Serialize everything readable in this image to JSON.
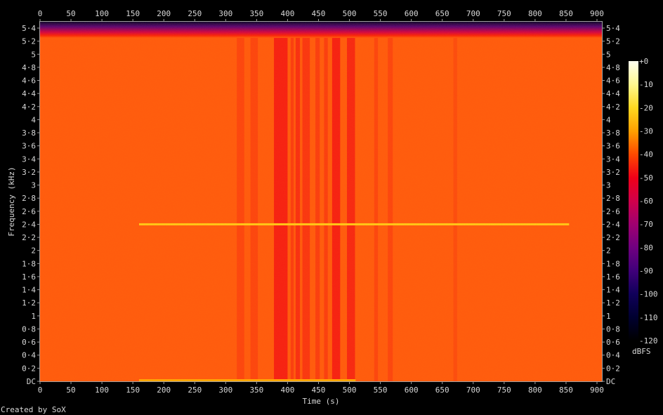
{
  "chart_data": {
    "type": "heatmap",
    "title": "",
    "xlabel": "Time (s)",
    "ylabel": "Frequency (kHz)",
    "xlim": [
      0,
      909
    ],
    "ylim": [
      0,
      5.5125
    ],
    "x_ticks": [
      "0",
      "50",
      "100",
      "150",
      "200",
      "250",
      "300",
      "350",
      "400",
      "450",
      "500",
      "550",
      "600",
      "650",
      "700",
      "750",
      "800",
      "850",
      "900"
    ],
    "x_tick_values": [
      0,
      50,
      100,
      150,
      200,
      250,
      300,
      350,
      400,
      450,
      500,
      550,
      600,
      650,
      700,
      750,
      800,
      850,
      900
    ],
    "y_ticks": [
      "DC",
      "0·2",
      "0·4",
      "0·6",
      "0·8",
      "1",
      "1·2",
      "1·4",
      "1·6",
      "1·8",
      "2",
      "2·2",
      "2·4",
      "2·6",
      "2·8",
      "3",
      "3·2",
      "3·4",
      "3·6",
      "3·8",
      "4",
      "4·2",
      "4·4",
      "4·6",
      "4·8",
      "5",
      "5·2",
      "5·4"
    ],
    "y_tick_values": [
      0,
      0.2,
      0.4,
      0.6,
      0.8,
      1,
      1.2,
      1.4,
      1.6,
      1.8,
      2,
      2.2,
      2.4,
      2.6,
      2.8,
      3,
      3.2,
      3.4,
      3.6,
      3.8,
      4,
      4.2,
      4.4,
      4.6,
      4.8,
      5,
      5.2,
      5.4
    ],
    "colorbar": {
      "label": "dBFS",
      "ticks": [
        "+0",
        "-10",
        "-20",
        "-30",
        "-40",
        "-50",
        "-60",
        "-70",
        "-80",
        "-90",
        "-100",
        "-110",
        "-120"
      ],
      "range": [
        -120,
        0
      ]
    },
    "background_level_dbfs": -40,
    "rolloff_start_khz": 5.25,
    "low_level_bands": [
      {
        "t": [
          318,
          330
        ],
        "dbfs": -43
      },
      {
        "t": [
          340,
          352
        ],
        "dbfs": -43
      },
      {
        "t": [
          378,
          400
        ],
        "dbfs": -48
      },
      {
        "t": [
          405,
          410
        ],
        "dbfs": -44
      },
      {
        "t": [
          413,
          420
        ],
        "dbfs": -46
      },
      {
        "t": [
          424,
          436
        ],
        "dbfs": -45
      },
      {
        "t": [
          445,
          452
        ],
        "dbfs": -44
      },
      {
        "t": [
          459,
          465
        ],
        "dbfs": -44
      },
      {
        "t": [
          472,
          485
        ],
        "dbfs": -48
      },
      {
        "t": [
          496,
          509
        ],
        "dbfs": -47
      },
      {
        "t": [
          540,
          546
        ],
        "dbfs": -43
      },
      {
        "t": [
          562,
          570
        ],
        "dbfs": -43
      },
      {
        "t": [
          668,
          674
        ],
        "dbfs": -42
      }
    ],
    "tones": [
      {
        "freq_khz": 2.4,
        "t": [
          160,
          855
        ],
        "dbfs": -22
      },
      {
        "freq_khz": 0.02,
        "t": [
          160,
          510
        ],
        "dbfs": -28
      }
    ]
  },
  "axis": {
    "xlabel": "Time (s)",
    "ylabel": "Frequency (kHz)",
    "colorbar_label": "dBFS"
  },
  "footer": "Created by SoX",
  "colors": {
    "background": "#000000",
    "axis": "#a0a0a0",
    "text": "#d8d8d8"
  }
}
